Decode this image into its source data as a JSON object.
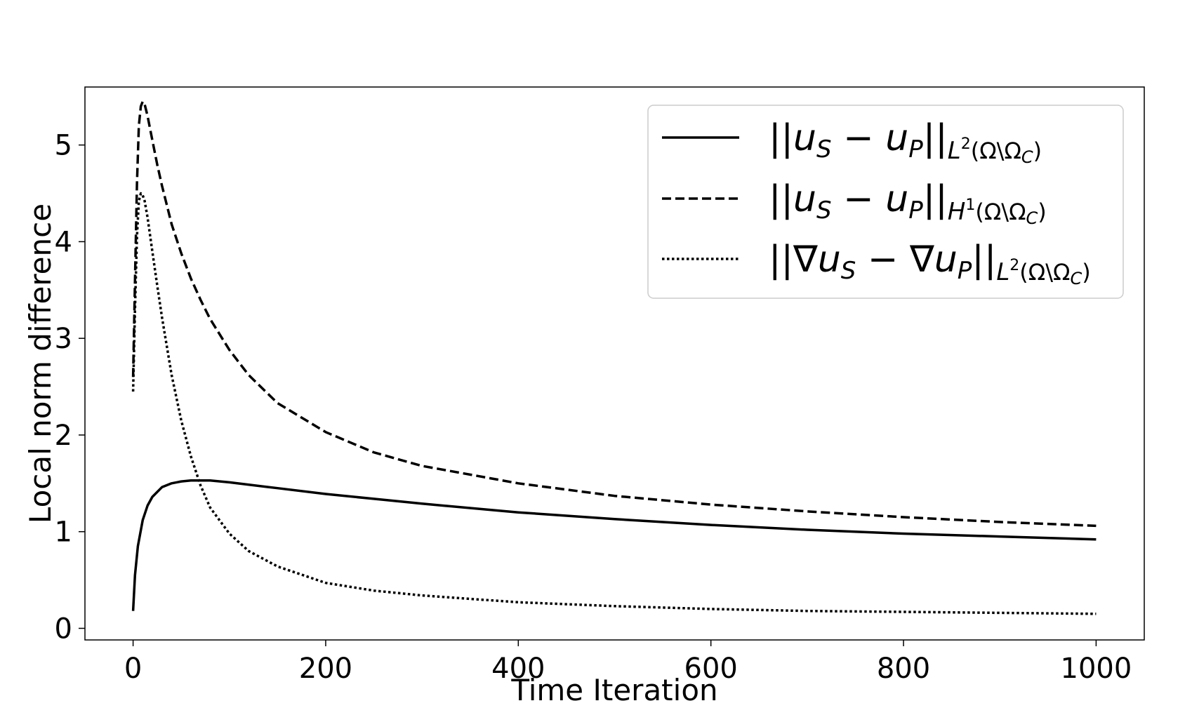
{
  "chart_data": {
    "type": "line",
    "title": "",
    "xlabel": "Time Iteration",
    "ylabel": "Local norm difference",
    "xlim": [
      -50,
      1050
    ],
    "ylim": [
      -0.12,
      5.6
    ],
    "x_ticks": [
      0,
      200,
      400,
      600,
      800,
      1000
    ],
    "y_ticks": [
      0,
      1,
      2,
      3,
      4,
      5
    ],
    "grid": false,
    "legend_position": "upper right",
    "series": [
      {
        "name": "||u_S − u_P||_{L²(Ω\\Ω_C)}",
        "style": "solid",
        "color": "#000000",
        "x": [
          0,
          2,
          5,
          10,
          15,
          20,
          30,
          40,
          50,
          60,
          70,
          80,
          100,
          150,
          200,
          250,
          300,
          400,
          500,
          600,
          700,
          800,
          900,
          1000
        ],
        "y": [
          0.18,
          0.55,
          0.85,
          1.12,
          1.27,
          1.36,
          1.46,
          1.5,
          1.52,
          1.53,
          1.53,
          1.53,
          1.51,
          1.45,
          1.39,
          1.34,
          1.29,
          1.2,
          1.13,
          1.07,
          1.02,
          0.98,
          0.95,
          0.92
        ]
      },
      {
        "name": "||u_S − u_P||_{H¹(Ω\\Ω_C)}",
        "style": "dashed",
        "color": "#000000",
        "x": [
          0,
          2,
          4,
          6,
          8,
          10,
          12,
          15,
          20,
          25,
          30,
          40,
          50,
          60,
          70,
          80,
          100,
          120,
          150,
          200,
          250,
          300,
          400,
          500,
          600,
          700,
          800,
          900,
          1000
        ],
        "y": [
          2.6,
          3.6,
          4.6,
          5.2,
          5.4,
          5.45,
          5.42,
          5.3,
          5.05,
          4.8,
          4.58,
          4.18,
          3.88,
          3.62,
          3.4,
          3.2,
          2.88,
          2.62,
          2.33,
          2.03,
          1.82,
          1.68,
          1.5,
          1.37,
          1.28,
          1.21,
          1.15,
          1.1,
          1.06
        ]
      },
      {
        "name": "||∇u_S − ∇u_P||_{L²(Ω\\Ω_C)}",
        "style": "dotted",
        "color": "#000000",
        "x": [
          0,
          2,
          4,
          6,
          8,
          10,
          12,
          15,
          20,
          25,
          30,
          40,
          50,
          60,
          70,
          80,
          100,
          120,
          150,
          200,
          250,
          300,
          400,
          500,
          600,
          700,
          800,
          900,
          1000
        ],
        "y": [
          2.45,
          3.3,
          4.05,
          4.42,
          4.5,
          4.48,
          4.42,
          4.25,
          3.9,
          3.55,
          3.22,
          2.62,
          2.15,
          1.78,
          1.48,
          1.25,
          0.98,
          0.8,
          0.64,
          0.47,
          0.39,
          0.34,
          0.27,
          0.23,
          0.2,
          0.18,
          0.17,
          0.16,
          0.15
        ]
      }
    ]
  }
}
